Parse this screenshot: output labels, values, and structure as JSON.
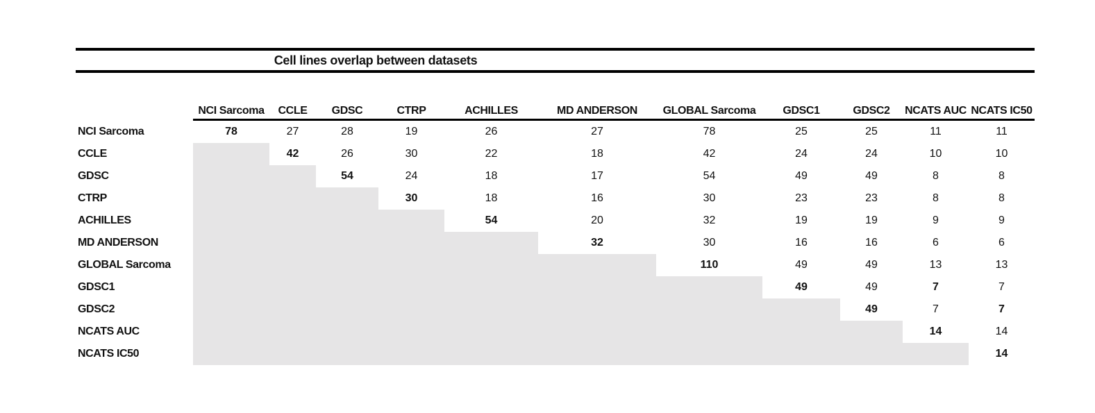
{
  "figure": {
    "title": "Cell lines overlap between datasets"
  },
  "colors": {
    "rule_black": "#000000",
    "shade_gray": "#e6e5e6",
    "text": "#111111",
    "background": "#ffffff"
  },
  "chart_data": {
    "type": "table",
    "title": "Cell lines overlap between datasets",
    "row_labels": [
      "NCI Sarcoma",
      "CCLE",
      "GDSC",
      "CTRP",
      "ACHILLES",
      "MD ANDERSON",
      "GLOBAL Sarcoma",
      "GDSC1",
      "GDSC2",
      "NCATS AUC",
      "NCATS IC50"
    ],
    "col_labels": [
      "NCI Sarcoma",
      "CCLE",
      "GDSC",
      "CTRP",
      "ACHILLES",
      "MD ANDERSON",
      "GLOBAL Sarcoma",
      "GDSC1",
      "GDSC2",
      "NCATS AUC",
      "NCATS IC50"
    ],
    "values": [
      [
        78,
        27,
        28,
        19,
        26,
        27,
        78,
        25,
        25,
        11,
        11
      ],
      [
        null,
        42,
        26,
        30,
        22,
        18,
        42,
        24,
        24,
        10,
        10
      ],
      [
        null,
        null,
        54,
        24,
        18,
        17,
        54,
        49,
        49,
        8,
        8
      ],
      [
        null,
        null,
        null,
        30,
        18,
        16,
        30,
        23,
        23,
        8,
        8
      ],
      [
        null,
        null,
        null,
        null,
        54,
        20,
        32,
        19,
        19,
        9,
        9
      ],
      [
        null,
        null,
        null,
        null,
        null,
        32,
        30,
        16,
        16,
        6,
        6
      ],
      [
        null,
        null,
        null,
        null,
        null,
        null,
        110,
        49,
        49,
        13,
        13
      ],
      [
        null,
        null,
        null,
        null,
        null,
        null,
        null,
        49,
        49,
        7,
        7
      ],
      [
        null,
        null,
        null,
        null,
        null,
        null,
        null,
        null,
        49,
        7,
        7
      ],
      [
        null,
        null,
        null,
        null,
        null,
        null,
        null,
        null,
        null,
        14,
        14
      ],
      [
        null,
        null,
        null,
        null,
        null,
        null,
        null,
        null,
        null,
        null,
        14
      ]
    ],
    "bold_cells": [
      [
        0,
        0
      ],
      [
        1,
        1
      ],
      [
        2,
        2
      ],
      [
        3,
        3
      ],
      [
        4,
        4
      ],
      [
        5,
        5
      ],
      [
        6,
        6
      ],
      [
        7,
        7
      ],
      [
        7,
        9
      ],
      [
        8,
        8
      ],
      [
        8,
        10
      ],
      [
        9,
        9
      ],
      [
        10,
        10
      ]
    ],
    "layout": {
      "lower_triangle": "gray-shaded staircase, no values",
      "diagonal": "bold self-overlap counts",
      "grid": "off",
      "header_underline": true,
      "double_rule_around_title": true
    }
  }
}
